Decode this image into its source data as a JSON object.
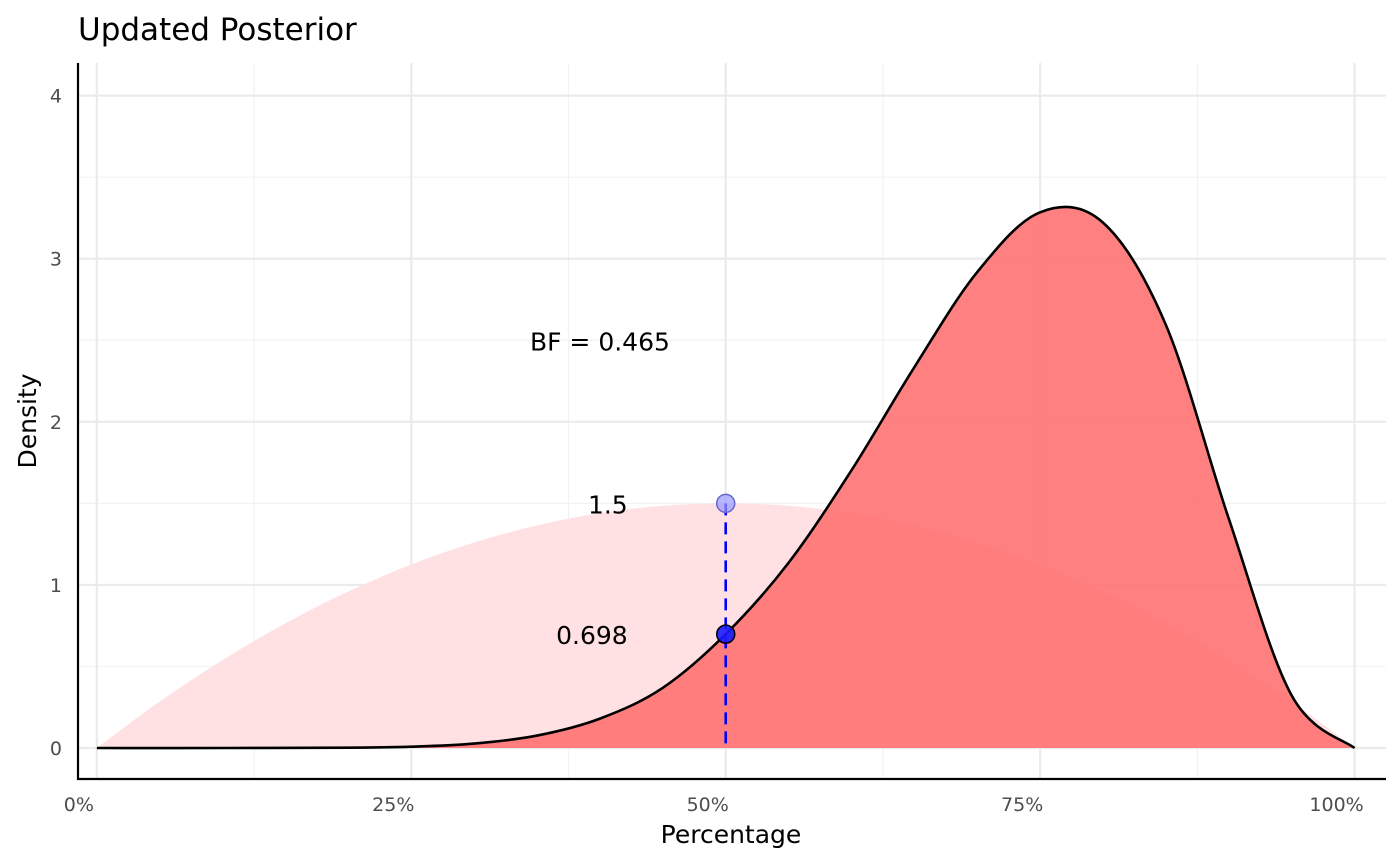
{
  "chart_data": {
    "type": "area",
    "title": "Updated Posterior",
    "xlabel": "Percentage",
    "ylabel": "Density",
    "xlim": [
      -0.015,
      1.025
    ],
    "ylim": [
      -0.19,
      4.2
    ],
    "x_ticks": [
      0,
      0.25,
      0.5,
      0.75,
      1.0
    ],
    "x_tick_labels": [
      "0%",
      "25%",
      "50%",
      "75%",
      "100%"
    ],
    "y_ticks": [
      0,
      1,
      2,
      3,
      4
    ],
    "y_tick_labels": [
      "0",
      "1",
      "2",
      "3",
      "4"
    ],
    "grid": true,
    "legend": "none",
    "series": [
      {
        "distribution": "Beta(2, 2)",
        "x": [
          0.0,
          0.05,
          0.1,
          0.15,
          0.2,
          0.25,
          0.3,
          0.35,
          0.4,
          0.45,
          0.5,
          0.55,
          0.6,
          0.65,
          0.7,
          0.75,
          0.8,
          0.85,
          0.9,
          0.95,
          1.0
        ],
        "values": [
          0,
          0.285,
          0.54,
          0.765,
          0.96,
          1.125,
          1.26,
          1.365,
          1.44,
          1.485,
          1.5,
          1.485,
          1.44,
          1.365,
          1.26,
          1.125,
          0.96,
          0.765,
          0.54,
          0.285,
          0
        ],
        "color": "#ffe0e3"
      },
      {
        "distribution": "Beta(10, 4)",
        "x": [
          0.0,
          0.1,
          0.2,
          0.25,
          0.3,
          0.35,
          0.4,
          0.45,
          0.5,
          0.55,
          0.6,
          0.65,
          0.7,
          0.75,
          0.8,
          0.85,
          0.9,
          0.95,
          1.0
        ],
        "values": [
          0,
          0.0001,
          0.0018,
          0.0081,
          0.0273,
          0.0762,
          0.1803,
          0.3691,
          0.6982,
          1.136,
          1.7026,
          2.3351,
          2.9183,
          3.2847,
          3.2212,
          2.5937,
          1.4058,
          0.3216,
          0
        ],
        "color": "#ff6e6e",
        "line_color": "#000000"
      }
    ],
    "reference_line": {
      "x": 0.5,
      "color": "#0000ff",
      "style": "dashed"
    },
    "points": [
      {
        "x": 0.5,
        "y": 1.5,
        "label": "1.5",
        "color": "#9999ff"
      },
      {
        "x": 0.5,
        "y": 0.698,
        "label": "0.698",
        "color": "#1a1aff"
      }
    ],
    "annotation": {
      "text": "BF = 0.465",
      "x": 0.4,
      "y": 2.5
    }
  }
}
